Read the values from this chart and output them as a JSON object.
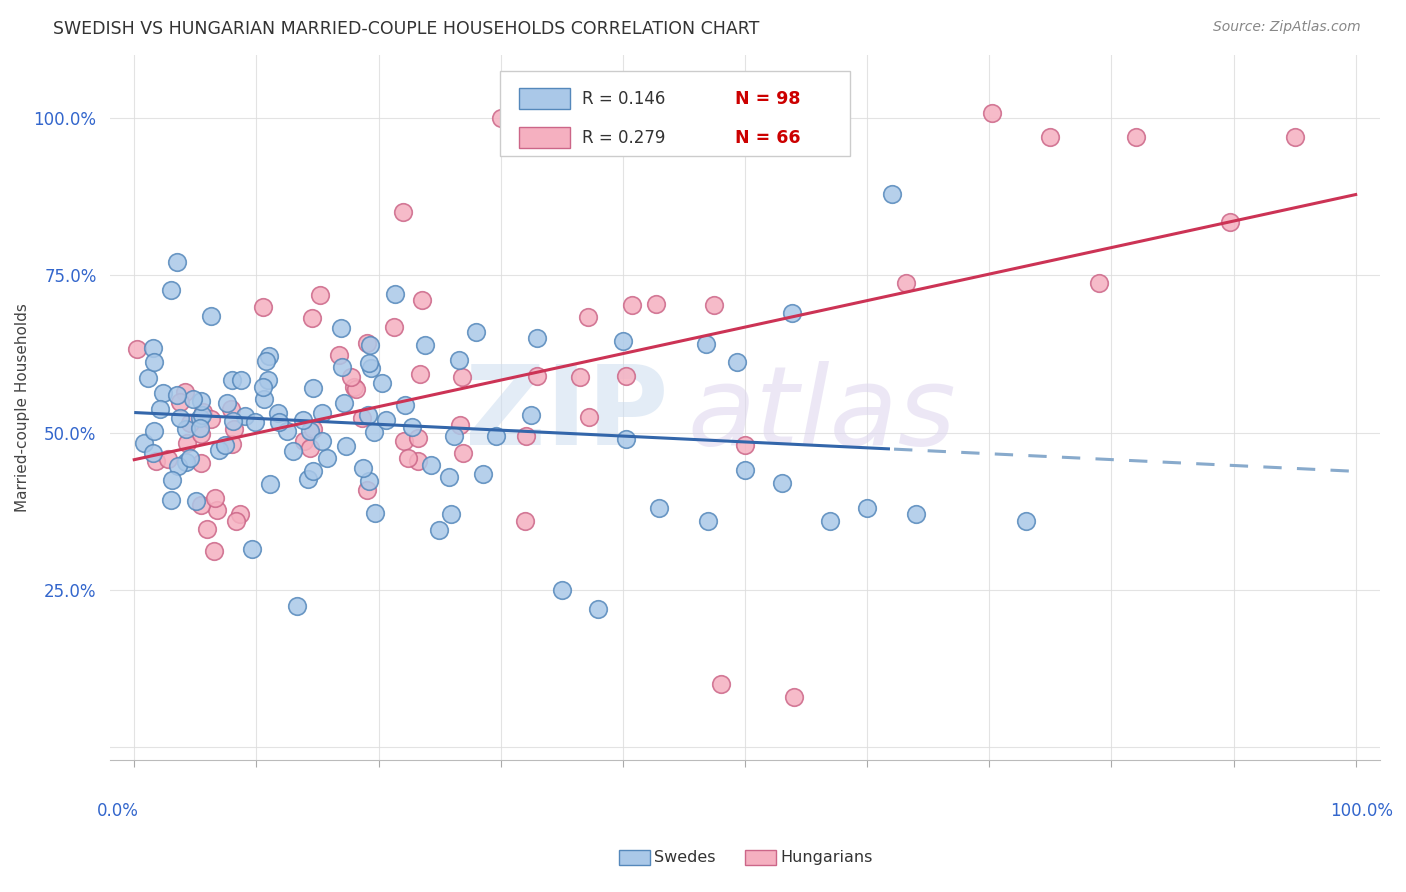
{
  "title": "SWEDISH VS HUNGARIAN MARRIED-COUPLE HOUSEHOLDS CORRELATION CHART",
  "source": "Source: ZipAtlas.com",
  "ylabel": "Married-couple Households",
  "blue_face": "#aac8e8",
  "blue_edge": "#5588bb",
  "pink_face": "#f5b0c0",
  "pink_edge": "#cc6688",
  "blue_line": "#3366aa",
  "blue_dash_color": "#88aacc",
  "pink_line": "#cc3355",
  "R_swedes": 0.146,
  "N_swedes": 98,
  "R_hung": 0.279,
  "N_hung": 66,
  "legend_r_color": "#333333",
  "legend_n_color": "#cc0000",
  "ytick_color": "#3366cc",
  "xtick_color": "#3366cc",
  "title_color": "#333333",
  "source_color": "#888888",
  "watermark_zip_color": "#ccddf0",
  "watermark_atlas_color": "#ddd5ee",
  "figsize": [
    14.06,
    8.92
  ],
  "dpi": 100,
  "xlim": [
    -0.02,
    1.02
  ],
  "ylim": [
    -0.02,
    1.1
  ],
  "yticks": [
    0.0,
    0.25,
    0.5,
    0.75,
    1.0
  ],
  "ytick_labels": [
    "",
    "25.0%",
    "50.0%",
    "75.0%",
    "100.0%"
  ]
}
